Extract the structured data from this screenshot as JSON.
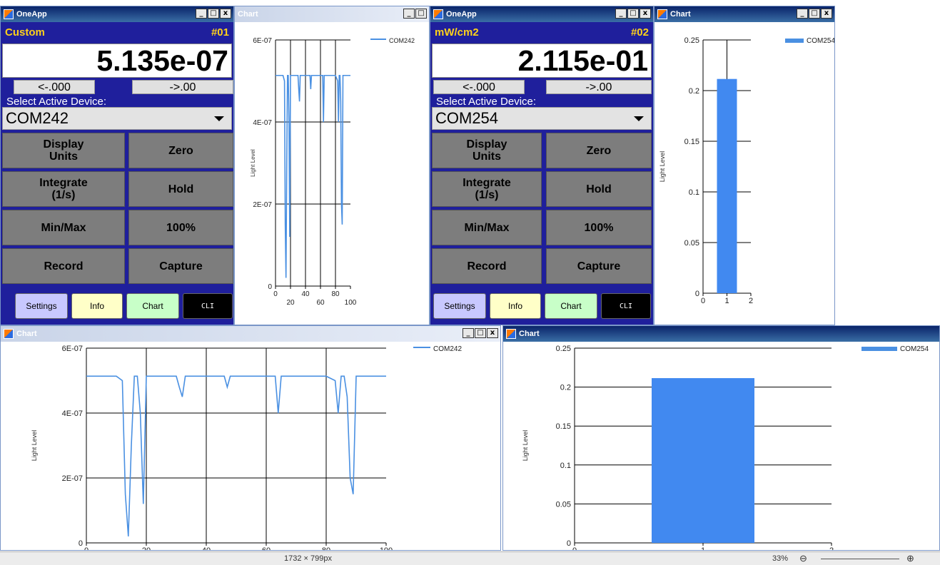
{
  "onetapps": [
    {
      "title": "OneApp",
      "unit": "Custom",
      "device_number": "#01",
      "reading": "5.135e-07",
      "dec_left": "<-.000",
      "dec_right": "->.00",
      "select_label": "Select Active Device:",
      "device": "COM242",
      "buttons": {
        "display_units": "Display\nUnits",
        "zero": "Zero",
        "integrate": "Integrate\n(1/s)",
        "hold": "Hold",
        "minmax": "Min/Max",
        "hundred": "100%",
        "record": "Record",
        "capture": "Capture"
      },
      "bottom": {
        "settings": "Settings",
        "info": "Info",
        "chart": "Chart",
        "cli": "CLI"
      }
    },
    {
      "title": "OneApp",
      "unit": "mW/cm2",
      "device_number": "#02",
      "reading": "2.115e-01",
      "dec_left": "<-.000",
      "dec_right": "->.00",
      "select_label": "Select Active Device:",
      "device": "COM254",
      "buttons": {
        "display_units": "Display\nUnits",
        "zero": "Zero",
        "integrate": "Integrate\n(1/s)",
        "hold": "Hold",
        "minmax": "Min/Max",
        "hundred": "100%",
        "record": "Record",
        "capture": "Capture"
      },
      "bottom": {
        "settings": "Settings",
        "info": "Info",
        "chart": "Chart",
        "cli": "CLI"
      }
    }
  ],
  "chart_windows": [
    {
      "title": "Chart"
    },
    {
      "title": "Chart"
    },
    {
      "title": "Chart"
    },
    {
      "title": "Chart"
    }
  ],
  "window_buttons": {
    "minimize": "_",
    "maximize": "□",
    "close": "x"
  },
  "status": {
    "dimensions": "1732 × 799px",
    "zoom": "33%"
  },
  "colors": {
    "app_bg": "#1f1f9c",
    "accent_yellow": "#ffd21a",
    "series": "#4a90e2",
    "bar": "#4189f0",
    "settings": "#c8c8ff",
    "info": "#ffffc8",
    "chart": "#c8ffc8",
    "cli": "#000000"
  },
  "chart_data": [
    {
      "type": "line",
      "title": "",
      "ylabel": "Light Level",
      "xlim": [
        0,
        100
      ],
      "ylim": [
        0,
        6e-07
      ],
      "xticks": [
        0,
        20,
        40,
        60,
        80,
        100
      ],
      "yticks": [
        "0",
        "2E-07",
        "4E-07",
        "6E-07"
      ],
      "series": [
        {
          "name": "COM242",
          "x": [
            0,
            10,
            12,
            13,
            14,
            15,
            16,
            17,
            18,
            19,
            20,
            21,
            30,
            31,
            32,
            33,
            40,
            46,
            47,
            48,
            55,
            60,
            63,
            64,
            65,
            66,
            67,
            70,
            80,
            83,
            84,
            85,
            86,
            87,
            88,
            89,
            90,
            91,
            92,
            93,
            100
          ],
          "y": [
            5.135e-07,
            5.135e-07,
            5e-07,
            1.5e-07,
            2e-08,
            3e-07,
            5.135e-07,
            5.135e-07,
            4e-07,
            1.2e-07,
            5.135e-07,
            5.135e-07,
            5.135e-07,
            4.8e-07,
            4.5e-07,
            5.135e-07,
            5.135e-07,
            5.135e-07,
            4.8e-07,
            5.135e-07,
            5.135e-07,
            5.135e-07,
            5.135e-07,
            4e-07,
            5.135e-07,
            5.135e-07,
            5.135e-07,
            5.135e-07,
            5.135e-07,
            5e-07,
            4e-07,
            5.135e-07,
            5.135e-07,
            4.5e-07,
            2e-07,
            1.5e-07,
            5.135e-07,
            5.135e-07,
            5.135e-07,
            5.135e-07,
            5.135e-07
          ]
        }
      ]
    },
    {
      "type": "bar",
      "title": "",
      "ylabel": "Light Level",
      "xlim": [
        0,
        2
      ],
      "ylim": [
        0,
        0.25
      ],
      "xticks": [
        0,
        1,
        2
      ],
      "yticks": [
        "0",
        "0.05",
        "0.1",
        "0.15",
        "0.2",
        "0.25"
      ],
      "categories": [
        1
      ],
      "series": [
        {
          "name": "COM254",
          "values": [
            0.2115
          ]
        }
      ]
    }
  ]
}
